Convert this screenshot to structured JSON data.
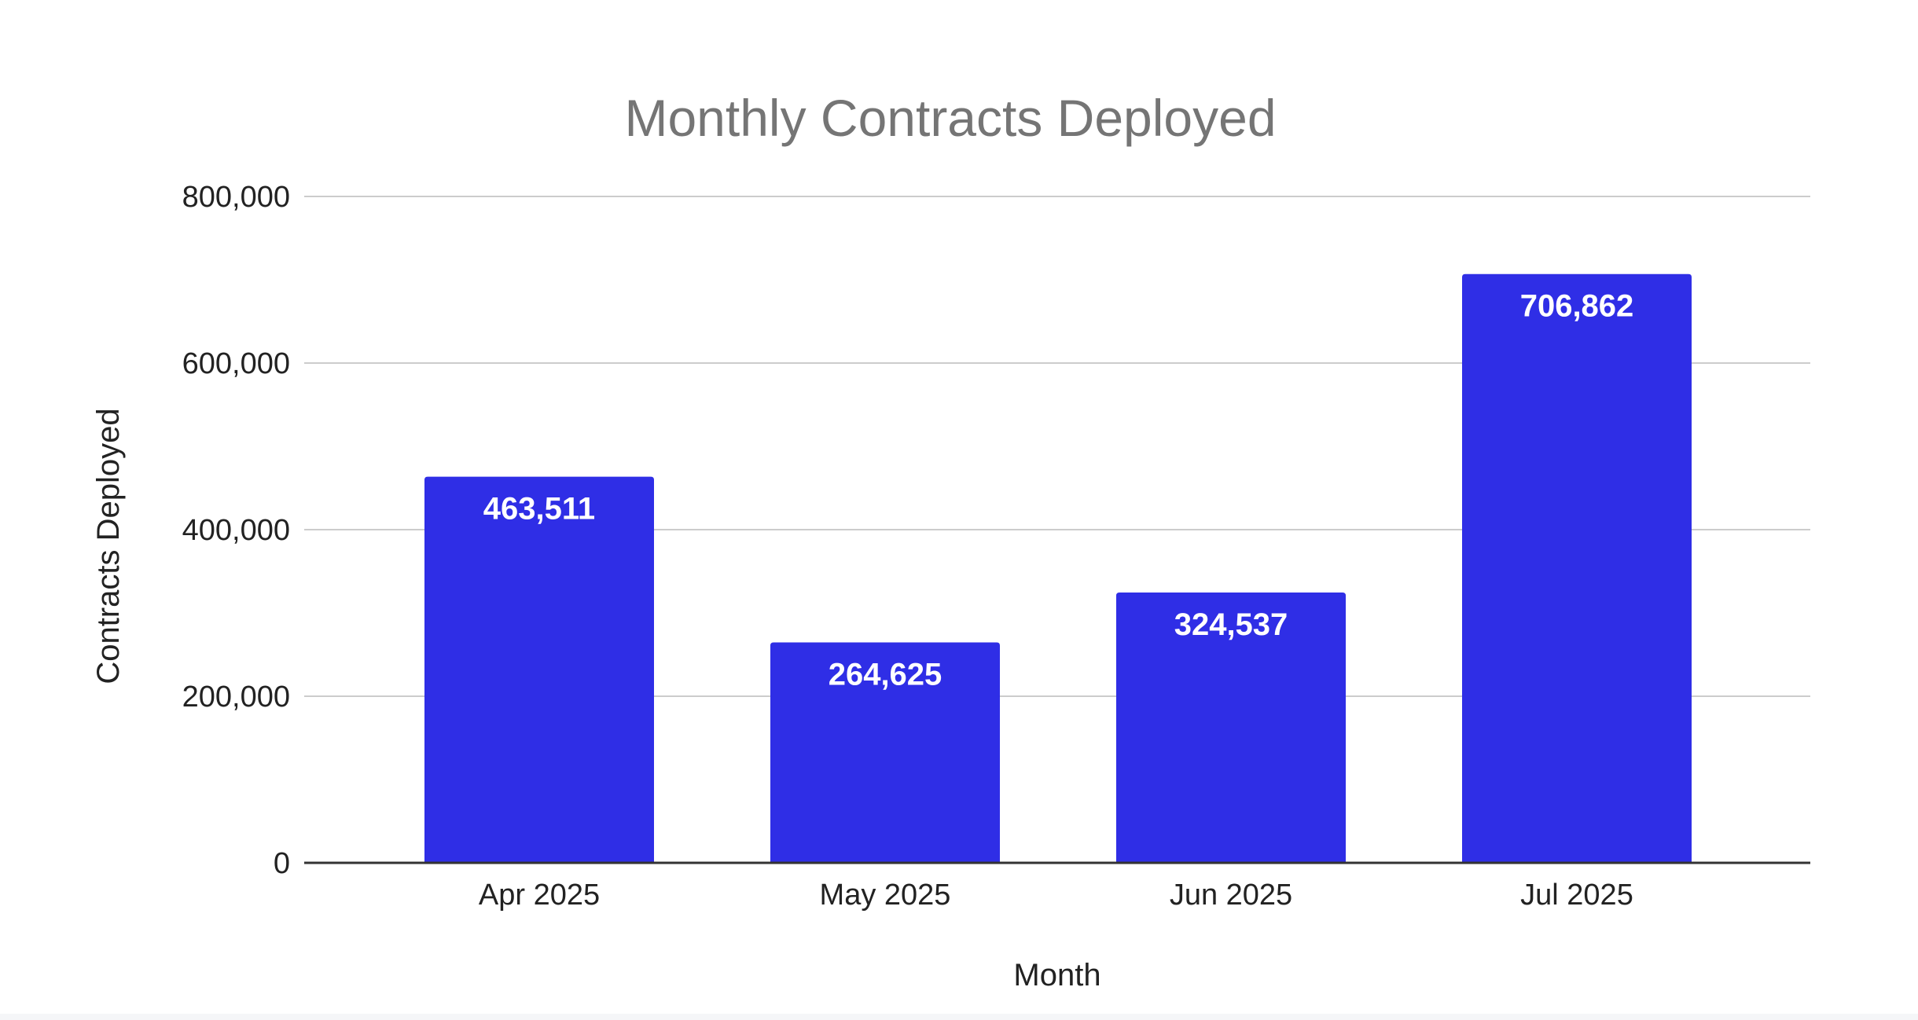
{
  "chart_data": {
    "type": "bar",
    "title": "Monthly Contracts Deployed",
    "xlabel": "Month",
    "ylabel": "Contracts Deployed",
    "categories": [
      "Apr 2025",
      "May 2025",
      "Jun 2025",
      "Jul 2025"
    ],
    "values": [
      463511,
      264625,
      324537,
      706862
    ],
    "data_labels": [
      "463,511",
      "264,625",
      "324,537",
      "706,862"
    ],
    "y_ticks": [
      0,
      200000,
      400000,
      600000,
      800000
    ],
    "y_tick_labels": [
      "0",
      "200,000",
      "400,000",
      "600,000",
      "800,000"
    ],
    "ylim": [
      0,
      800000
    ],
    "grid": true,
    "legend": "none",
    "bar_color": "#2f2ee6"
  }
}
